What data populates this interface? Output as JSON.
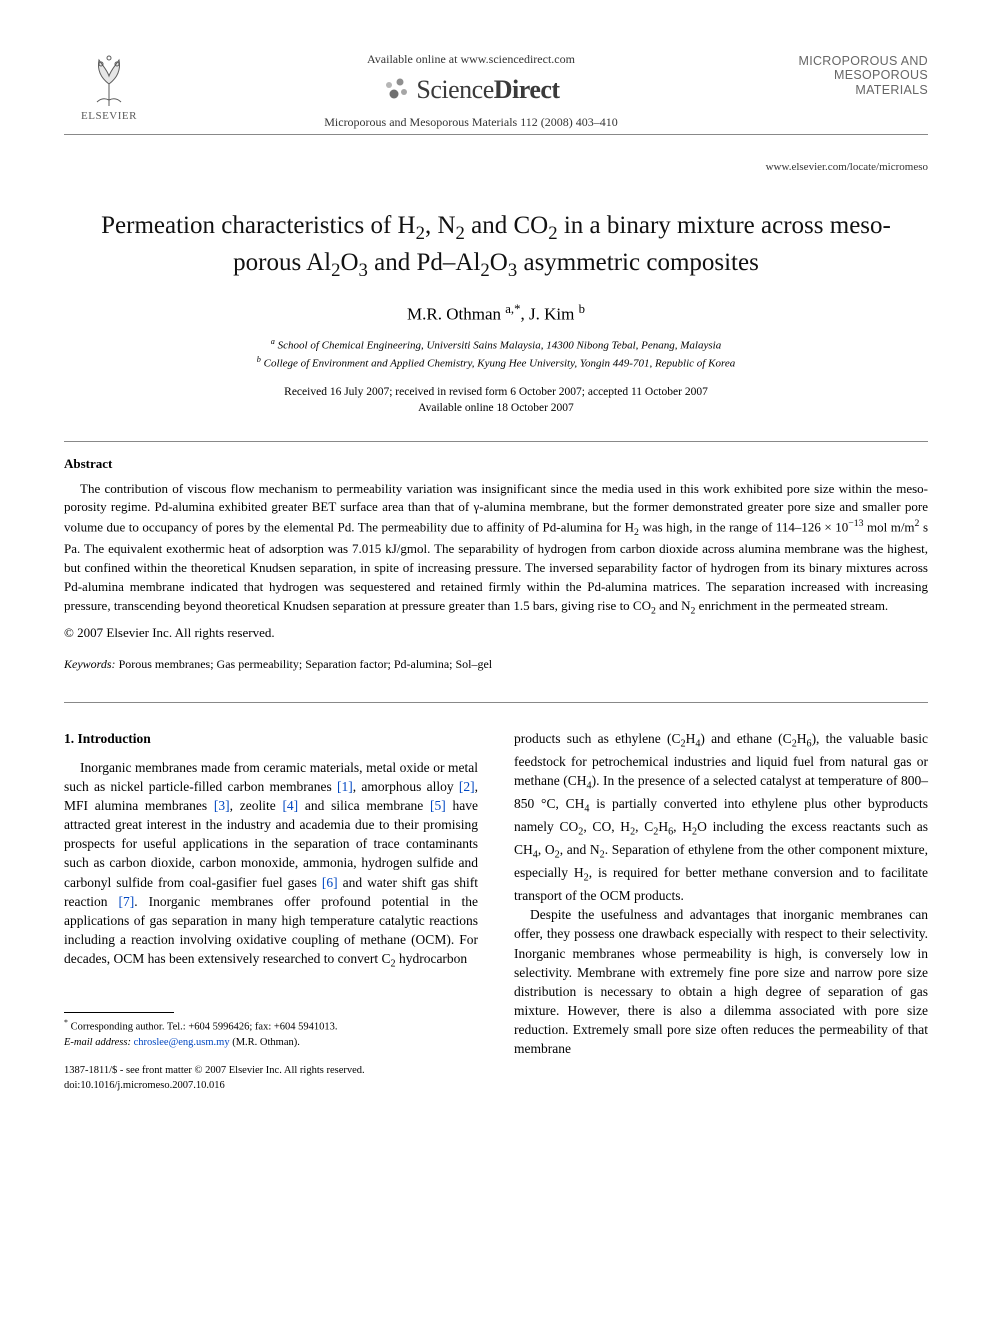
{
  "header": {
    "publisher": "ELSEVIER",
    "available_line": "Available online at www.sciencedirect.com",
    "sd_brand_a": "Science",
    "sd_brand_b": "Direct",
    "journal_ref": "Microporous and Mesoporous Materials 112 (2008) 403–410",
    "journal_name_l1": "MICROPOROUS AND",
    "journal_name_l2": "MESOPOROUS MATERIALS",
    "journal_url": "www.elsevier.com/locate/micromeso"
  },
  "title_html": "Permeation characteristics of H<sub>2</sub>, N<sub>2</sub> and CO<sub>2</sub> in a binary mixture across meso-porous Al<sub>2</sub>O<sub>3</sub> and Pd–Al<sub>2</sub>O<sub>3</sub> asymmetric composites",
  "authors_html": "M.R. Othman <sup>a,*</sup>, J. Kim <sup>b</sup>",
  "affiliations": {
    "a": "School of Chemical Engineering, Universiti Sains Malaysia, 14300 Nibong Tebal, Penang, Malaysia",
    "b": "College of Environment and Applied Chemistry, Kyung Hee University, Yongin 449-701, Republic of Korea"
  },
  "dates": {
    "received": "Received 16 July 2007; received in revised form 6 October 2007; accepted 11 October 2007",
    "online": "Available online 18 October 2007"
  },
  "abstract_heading": "Abstract",
  "abstract_html": "The contribution of viscous flow mechanism to permeability variation was insignificant since the media used in this work exhibited pore size within the meso-porosity regime. Pd-alumina exhibited greater BET surface area than that of γ-alumina membrane, but the former demonstrated greater pore size and smaller pore volume due to occupancy of pores by the elemental Pd. The permeability due to affinity of Pd-alumina for H<sub>2</sub> was high, in the range of 114–126 × 10<sup>−13</sup> mol m/m<sup>2</sup> s Pa. The equivalent exothermic heat of adsorption was 7.015 kJ/gmol. The separability of hydrogen from carbon dioxide across alumina membrane was the highest, but confined within the theoretical Knudsen separation, in spite of increasing pressure. The inversed separability factor of hydrogen from its binary mixtures across Pd-alumina membrane indicated that hydrogen was sequestered and retained firmly within the Pd-alumina matrices. The separation increased with increasing pressure, transcending beyond theoretical Knudsen separation at pressure greater than 1.5 bars, giving rise to CO<sub>2</sub> and N<sub>2</sub> enrichment in the permeated stream.",
  "copyright": "© 2007 Elsevier Inc. All rights reserved.",
  "keywords_label": "Keywords:",
  "keywords": "Porous membranes; Gas permeability; Separation factor; Pd-alumina; Sol–gel",
  "intro_heading": "1. Introduction",
  "intro_col1_html": "Inorganic membranes made from ceramic materials, metal oxide or metal such as nickel particle-filled carbon membranes <span class=\"cite\">[1]</span>, amorphous alloy <span class=\"cite\">[2]</span>, MFI alumina membranes <span class=\"cite\">[3]</span>, zeolite <span class=\"cite\">[4]</span> and silica membrane <span class=\"cite\">[5]</span> have attracted great interest in the industry and academia due to their promising prospects for useful applications in the separation of trace contaminants such as carbon dioxide, carbon monoxide, ammonia, hydrogen sulfide and carbonyl sulfide from coal-gasifier fuel gases <span class=\"cite\">[6]</span> and water shift gas shift reaction <span class=\"cite\">[7]</span>. Inorganic membranes offer profound potential in the applications of gas separation in many high temperature catalytic reactions including a reaction involving oxidative coupling of methane (OCM). For decades, OCM has been extensively researched to convert C<sub>2</sub> hydrocarbon",
  "intro_col2_p1_html": "products such as ethylene (C<sub>2</sub>H<sub>4</sub>) and ethane (C<sub>2</sub>H<sub>6</sub>), the valuable basic feedstock for petrochemical industries and liquid fuel from natural gas or methane (CH<sub>4</sub>). In the presence of a selected catalyst at temperature of 800–850 °C, CH<sub>4</sub> is partially converted into ethylene plus other byproducts namely CO<sub>2</sub>, CO, H<sub>2</sub>, C<sub>2</sub>H<sub>6</sub>, H<sub>2</sub>O including the excess reactants such as CH<sub>4</sub>, O<sub>2</sub>, and N<sub>2</sub>. Separation of ethylene from the other component mixture, especially H<sub>2</sub>, is required for better methane conversion and to facilitate transport of the OCM products.",
  "intro_col2_p2_html": "Despite the usefulness and advantages that inorganic membranes can offer, they possess one drawback especially with respect to their selectivity. Inorganic membranes whose permeability is high, is conversely low in selectivity. Membrane with extremely fine pore size and narrow pore size distribution is necessary to obtain a high degree of separation of gas mixture. However, there is also a dilemma associated with pore size reduction. Extremely small pore size often reduces the permeability of that membrane",
  "footnote": {
    "corr": "Corresponding author. Tel.: +604 5996426; fax: +604 5941013.",
    "email_label": "E-mail address:",
    "email": "chroslee@eng.usm.my",
    "email_who": "(M.R. Othman)."
  },
  "bottom": {
    "issn": "1387-1811/$ - see front matter © 2007 Elsevier Inc. All rights reserved.",
    "doi": "doi:10.1016/j.micromeso.2007.10.016"
  },
  "colors": {
    "text": "#000000",
    "link": "#0047c2",
    "muted": "#666666",
    "bg": "#ffffff"
  }
}
